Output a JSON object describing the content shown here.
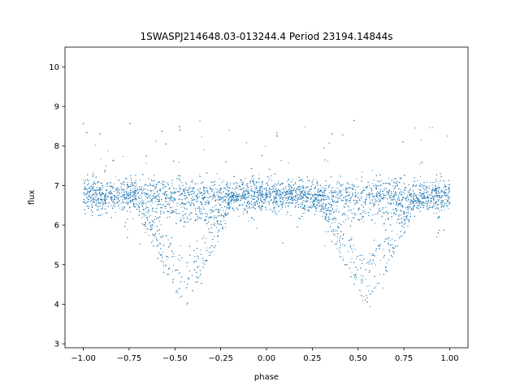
{
  "chart_data": {
    "type": "scatter",
    "title": "1SWASPJ214648.03-013244.4 Period 23194.14844s",
    "xlabel": "phase",
    "ylabel": "flux",
    "xlim": [
      -1.1,
      1.1
    ],
    "ylim": [
      2.9,
      10.5
    ],
    "x_ticks": [
      -1.0,
      -0.75,
      -0.5,
      -0.25,
      0.0,
      0.25,
      0.5,
      0.75,
      1.0
    ],
    "x_tick_labels": [
      "−1.00",
      "−0.75",
      "−0.50",
      "−0.25",
      "0.00",
      "0.25",
      "0.50",
      "0.75",
      "1.00"
    ],
    "y_ticks": [
      3,
      4,
      5,
      6,
      7,
      8,
      9,
      10
    ],
    "y_tick_labels": [
      "3",
      "4",
      "5",
      "6",
      "7",
      "8",
      "9",
      "10"
    ],
    "grid": false,
    "legend": "none",
    "point_color": "#1f77b4",
    "series": [
      {
        "points_description_profile": {
          "baseline_flux": 6.75,
          "baseline_scatter": 0.2,
          "eclipse_centers": [
            -0.45,
            0.55
          ],
          "eclipse_min_flux": 4.0,
          "eclipse_halfwidth": 0.27,
          "shallow_band_flux": 6.25,
          "x_range": [
            -1.0,
            1.0
          ]
        }
      }
    ]
  }
}
